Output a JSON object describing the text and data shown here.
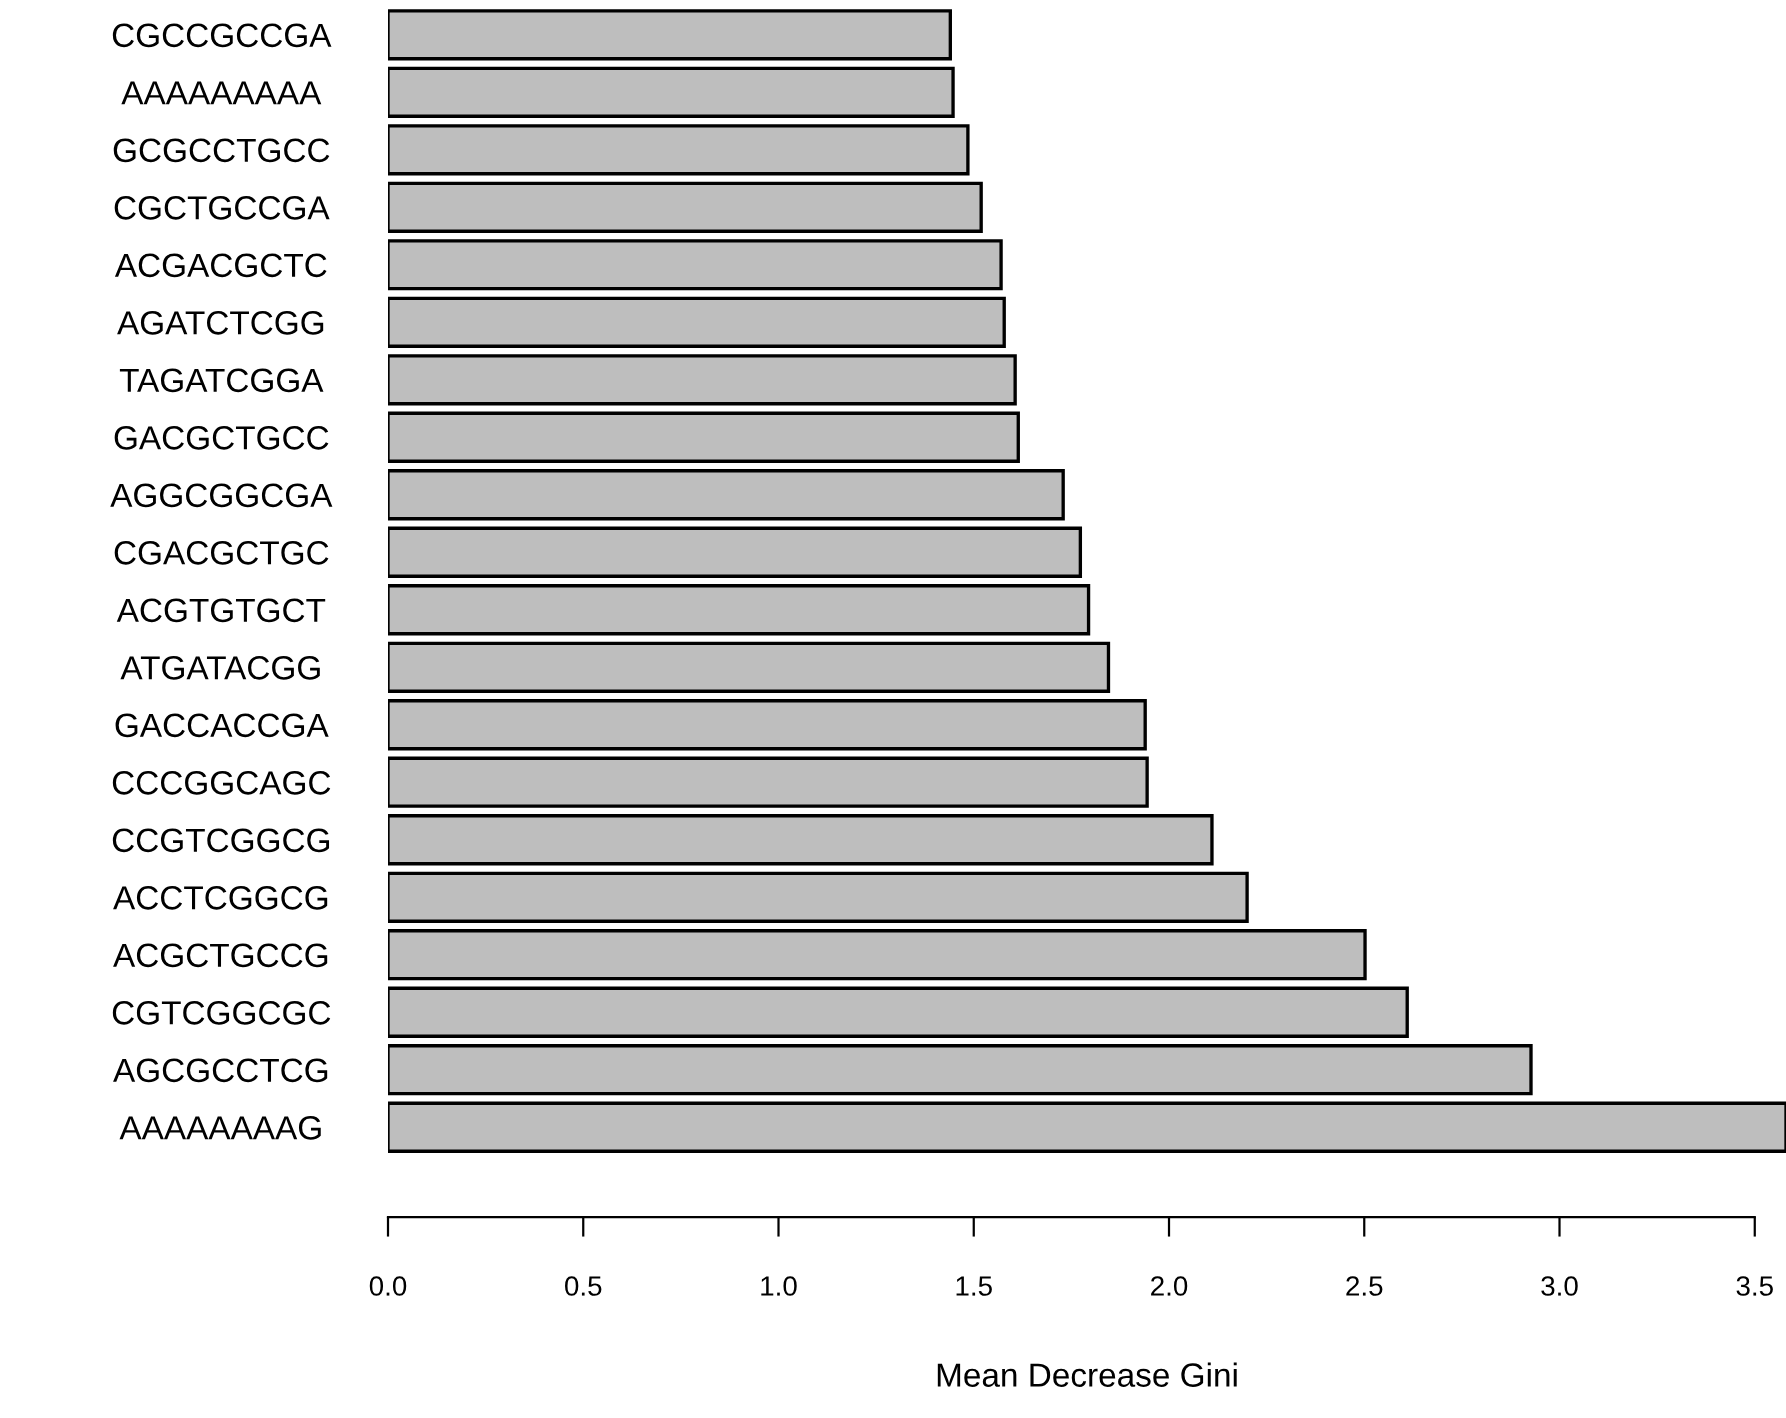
{
  "chart_data": {
    "type": "bar",
    "orientation": "horizontal",
    "xlabel": "Mean Decrease Gini",
    "categories": [
      "CGCCGCCGA",
      "AAAAAAAAA",
      "GCGCCTGCC",
      "CGCTGCCGA",
      "ACGACGCTC",
      "AGATCTCGG",
      "TAGATCGGA",
      "GACGCTGCC",
      "AGGCGGCGA",
      "CGACGCTGC",
      "ACGTGTGCT",
      "ATGATACGG",
      "GACCACCGA",
      "CCCGGCAGC",
      "CCGTCGGCG",
      "ACCTCGGCG",
      "ACGCTGCCG",
      "CGTCGGCGC",
      "AGCGCCTCG",
      "AAAAAAAAG"
    ],
    "values": [
      1.44,
      1.447,
      1.485,
      1.519,
      1.57,
      1.578,
      1.606,
      1.614,
      1.729,
      1.773,
      1.794,
      1.845,
      1.939,
      1.944,
      2.11,
      2.2,
      2.502,
      2.61,
      2.927,
      3.58
    ],
    "color": "#bebebe",
    "xlim": [
      0,
      3.58
    ],
    "xticks": [
      {
        "value": 0,
        "label": "0.0"
      },
      {
        "value": 0.5,
        "label": "0.5"
      },
      {
        "value": 1,
        "label": "1.0"
      },
      {
        "value": 1.5,
        "label": "1.5"
      },
      {
        "value": 2,
        "label": "2.0"
      },
      {
        "value": 2.5,
        "label": "2.5"
      },
      {
        "value": 3,
        "label": "3.0"
      },
      {
        "value": 3.5,
        "label": "3.5"
      }
    ],
    "grid": false
  }
}
